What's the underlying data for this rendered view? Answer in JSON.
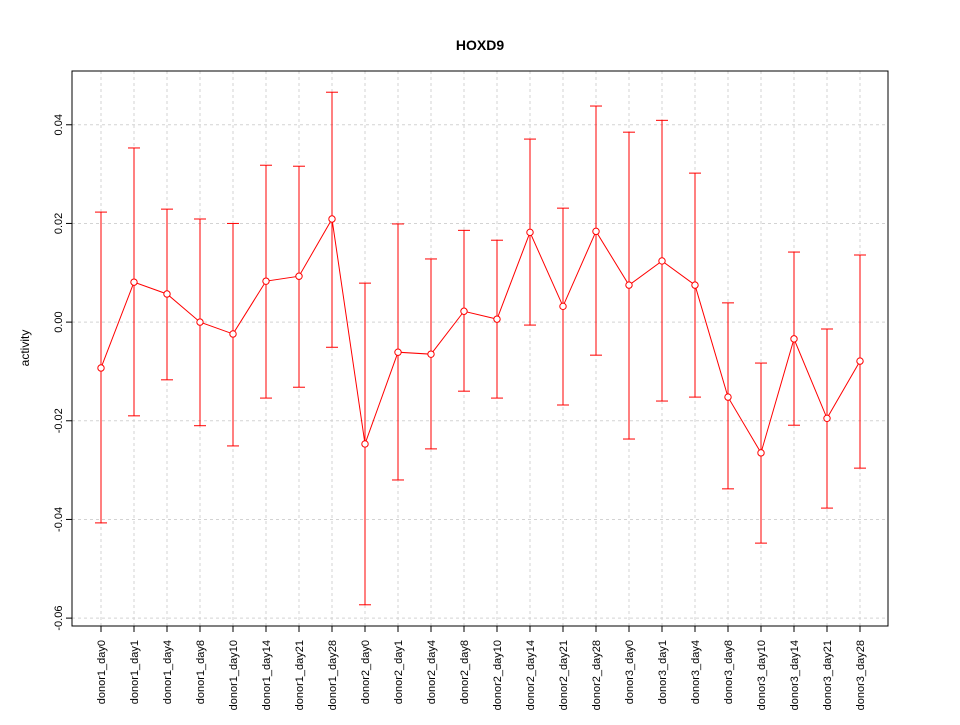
{
  "chart_data": {
    "type": "line",
    "title": "HOXD9",
    "xlabel": "",
    "ylabel": "activity",
    "ylim": [
      -0.0616,
      0.0509
    ],
    "yticks": [
      -0.06,
      -0.04,
      -0.02,
      0.0,
      0.02,
      0.04
    ],
    "ytick_labels": [
      "-0.06",
      "-0.04",
      "-0.02",
      "0.00",
      "0.02",
      "0.04"
    ],
    "grid": true,
    "colors": {
      "series": "#ff0000",
      "grid": "#d3d3d3",
      "axis": "#000000"
    },
    "categories": [
      "donor1_day0",
      "donor1_day1",
      "donor1_day4",
      "donor1_day8",
      "donor1_day10",
      "donor1_day14",
      "donor1_day21",
      "donor1_day28",
      "donor2_day0",
      "donor2_day1",
      "donor2_day4",
      "donor2_day8",
      "donor2_day10",
      "donor2_day14",
      "donor2_day21",
      "donor2_day28",
      "donor3_day0",
      "donor3_day1",
      "donor3_day4",
      "donor3_day8",
      "donor3_day10",
      "donor3_day14",
      "donor3_day21",
      "donor3_day28"
    ],
    "values": [
      -0.0093,
      0.0081,
      0.0057,
      0.0,
      -0.0024,
      0.0083,
      0.0093,
      0.0209,
      -0.0247,
      -0.0061,
      -0.0065,
      0.0022,
      0.0006,
      0.0182,
      0.0032,
      0.0184,
      0.0075,
      0.0124,
      0.0075,
      -0.0152,
      -0.0265,
      -0.0034,
      -0.0195,
      -0.0079
    ],
    "upper": [
      0.0223,
      0.0353,
      0.0229,
      0.0209,
      0.02,
      0.0318,
      0.0316,
      0.0466,
      0.0079,
      0.0199,
      0.0128,
      0.0186,
      0.0166,
      0.0371,
      0.0231,
      0.0438,
      0.0385,
      0.0409,
      0.0302,
      0.0039,
      -0.0083,
      0.0142,
      -0.0014,
      0.0136
    ],
    "lower": [
      -0.0407,
      -0.019,
      -0.0117,
      -0.021,
      -0.0251,
      -0.0154,
      -0.0132,
      -0.0051,
      -0.0573,
      -0.032,
      -0.0257,
      -0.014,
      -0.0154,
      -0.0006,
      -0.0168,
      -0.0067,
      -0.0237,
      -0.016,
      -0.0152,
      -0.0338,
      -0.0448,
      -0.0209,
      -0.0377,
      -0.0296
    ]
  }
}
